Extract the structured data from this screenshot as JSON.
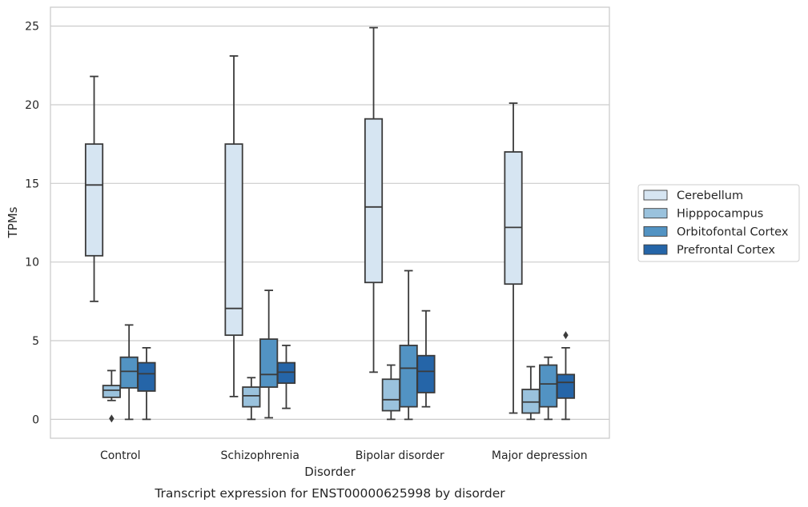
{
  "chart_data": {
    "type": "box",
    "xlabel": "Disorder",
    "ylabel": "TPMs",
    "caption": "Transcript expression for ENST00000625998 by disorder",
    "ylim": [
      -1.2,
      26.2
    ],
    "yticks": [
      "0",
      "5",
      "10",
      "15",
      "20",
      "25"
    ],
    "grid": true,
    "legend_position": "right",
    "categories": [
      "Control",
      "Schizophrenia",
      "Bipolar disorder",
      "Major depression"
    ],
    "series": [
      {
        "name": "Cerebellum",
        "color": "#d6e5f2",
        "boxes": [
          {
            "whislo": 7.5,
            "q1": 10.4,
            "median": 14.9,
            "q3": 17.5,
            "whishi": 21.8,
            "fliers": []
          },
          {
            "whislo": 1.45,
            "q1": 5.35,
            "median": 7.05,
            "q3": 17.5,
            "whishi": 23.1,
            "fliers": []
          },
          {
            "whislo": 3.0,
            "q1": 8.7,
            "median": 13.5,
            "q3": 19.1,
            "whishi": 24.9,
            "fliers": []
          },
          {
            "whislo": 0.4,
            "q1": 8.6,
            "median": 12.2,
            "q3": 17.0,
            "whishi": 20.1,
            "fliers": []
          }
        ]
      },
      {
        "name": "Hipppocampus",
        "color": "#9ac2dd",
        "boxes": [
          {
            "whislo": 1.2,
            "q1": 1.4,
            "median": 1.85,
            "q3": 2.15,
            "whishi": 3.1,
            "fliers": [
              0.05
            ]
          },
          {
            "whislo": 0.0,
            "q1": 0.8,
            "median": 1.5,
            "q3": 2.05,
            "whishi": 2.65,
            "fliers": []
          },
          {
            "whislo": 0.0,
            "q1": 0.55,
            "median": 1.25,
            "q3": 2.55,
            "whishi": 3.45,
            "fliers": []
          },
          {
            "whislo": 0.0,
            "q1": 0.4,
            "median": 1.1,
            "q3": 1.9,
            "whishi": 3.35,
            "fliers": []
          }
        ]
      },
      {
        "name": "Orbitofontal Cortex",
        "color": "#5293c3",
        "boxes": [
          {
            "whislo": 0.0,
            "q1": 2.0,
            "median": 3.05,
            "q3": 3.95,
            "whishi": 6.0,
            "fliers": []
          },
          {
            "whislo": 0.1,
            "q1": 2.05,
            "median": 2.85,
            "q3": 5.1,
            "whishi": 8.2,
            "fliers": []
          },
          {
            "whislo": 0.0,
            "q1": 0.8,
            "median": 3.25,
            "q3": 4.7,
            "whishi": 9.45,
            "fliers": []
          },
          {
            "whislo": 0.0,
            "q1": 0.8,
            "median": 2.25,
            "q3": 3.45,
            "whishi": 3.95,
            "fliers": []
          }
        ]
      },
      {
        "name": "Prefrontal Cortex",
        "color": "#2565a8",
        "boxes": [
          {
            "whislo": 0.0,
            "q1": 1.8,
            "median": 2.9,
            "q3": 3.6,
            "whishi": 4.55,
            "fliers": []
          },
          {
            "whislo": 0.7,
            "q1": 2.3,
            "median": 3.0,
            "q3": 3.6,
            "whishi": 4.7,
            "fliers": []
          },
          {
            "whislo": 0.8,
            "q1": 1.7,
            "median": 3.05,
            "q3": 4.05,
            "whishi": 6.9,
            "fliers": []
          },
          {
            "whislo": 0.0,
            "q1": 1.35,
            "median": 2.35,
            "q3": 2.85,
            "whishi": 4.55,
            "fliers": [
              5.35
            ]
          }
        ]
      }
    ]
  }
}
